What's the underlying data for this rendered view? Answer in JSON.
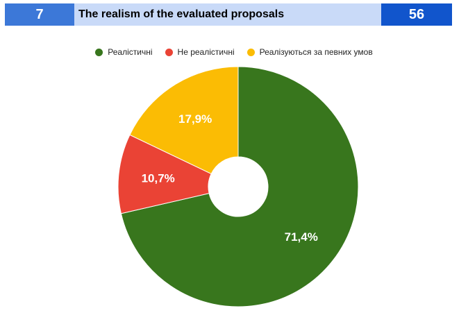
{
  "header": {
    "number": "7",
    "title": "The realism of the evaluated proposals",
    "count": "56",
    "colors": {
      "number_bg": "#3c78d8",
      "title_bg": "#c9daf8",
      "count_bg": "#1155cc"
    }
  },
  "chart_data": {
    "type": "pie",
    "donut": true,
    "legend_position": "top-center",
    "slices": [
      {
        "label": "Реалістичні",
        "value": 71.4,
        "display": "71,4%",
        "color": "#38761d"
      },
      {
        "label": "Не реалістичні",
        "value": 10.7,
        "display": "10,7%",
        "color": "#ea4335"
      },
      {
        "label": "Реалізуються за певних умов",
        "value": 17.9,
        "display": "17,9%",
        "color": "#fbbc04"
      }
    ]
  }
}
